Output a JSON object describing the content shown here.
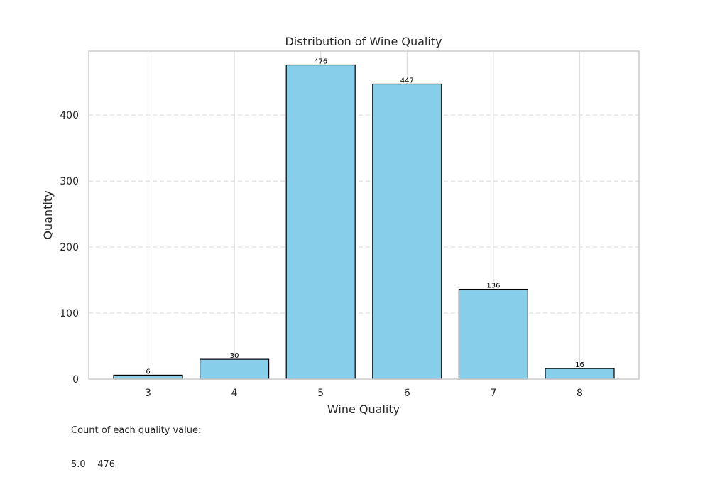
{
  "chart_data": {
    "type": "bar",
    "title": "Distribution of Wine Quality",
    "xlabel": "Wine Quality",
    "ylabel": "Quantity",
    "categories": [
      "3",
      "4",
      "5",
      "6",
      "7",
      "8"
    ],
    "values": [
      6,
      30,
      476,
      447,
      136,
      16
    ],
    "data_labels": [
      "6",
      "30",
      "476",
      "447",
      "136",
      "16"
    ],
    "y_ticks": [
      0,
      100,
      200,
      300,
      400
    ],
    "ylim": [
      0,
      500
    ],
    "grid": {
      "x": true,
      "y": true,
      "y_style": "dashed"
    },
    "colors": {
      "bar_fill": "#87CEEB",
      "bar_edge": "#000000",
      "grid": "#dddddd",
      "frame": "#cccccc"
    }
  },
  "footer": {
    "line1": "Count of each quality value:",
    "line2": "5.0    476"
  }
}
